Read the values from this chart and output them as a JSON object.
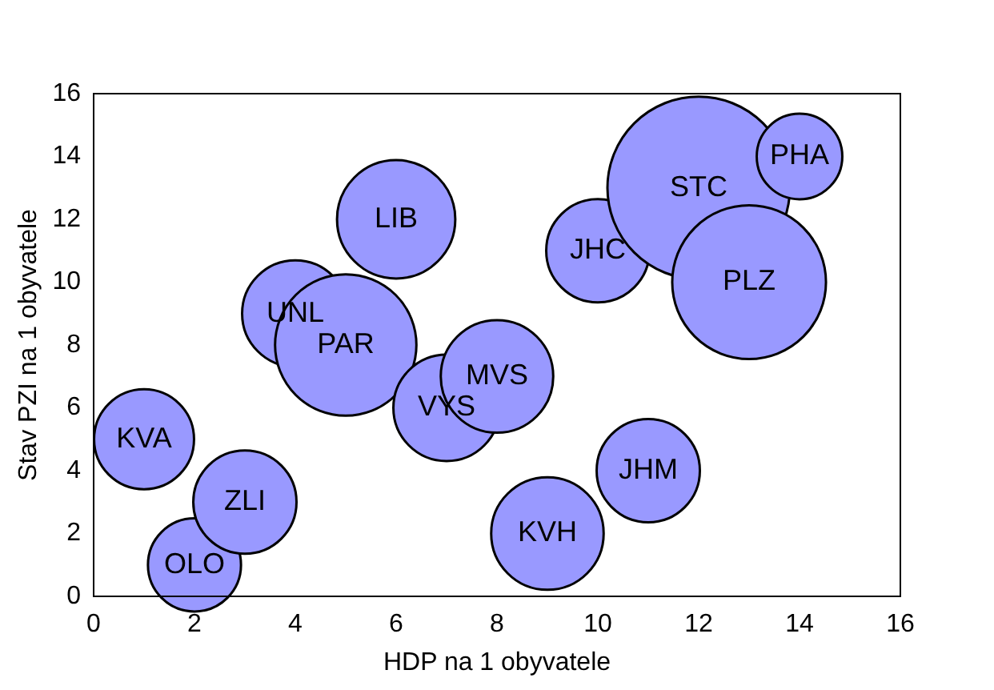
{
  "chart_data": {
    "type": "bubble",
    "xlabel": "HDP na 1 obyvatele",
    "ylabel": "Stav PZI na 1 obyvatele",
    "x": [
      1,
      2,
      3,
      4,
      5,
      6,
      7,
      8,
      9,
      10,
      11,
      12,
      13,
      14
    ],
    "values": [
      5,
      1,
      3,
      9,
      8,
      12,
      6,
      7,
      2,
      11,
      4,
      13,
      10,
      14
    ],
    "sizes": [
      0.3,
      0.26,
      0.32,
      0.34,
      0.6,
      0.42,
      0.34,
      0.38,
      0.38,
      0.32,
      0.32,
      1,
      0.71,
      0.22
    ],
    "color": "#9999ff",
    "xlim": [
      0,
      16
    ],
    "xticks": [
      0,
      2,
      4,
      6,
      8,
      10,
      12,
      14,
      16
    ],
    "ylim": [
      0,
      16
    ],
    "yticks": [
      0,
      2,
      4,
      6,
      8,
      10,
      12,
      14,
      16
    ],
    "annotations": [
      {
        "text": "KVA",
        "x": 1,
        "y": 5
      },
      {
        "text": "OLO",
        "x": 2,
        "y": 1
      },
      {
        "text": "ZLI",
        "x": 3,
        "y": 3
      },
      {
        "text": "UNL",
        "x": 4,
        "y": 9
      },
      {
        "text": "PAR",
        "x": 5,
        "y": 8
      },
      {
        "text": "LIB",
        "x": 6,
        "y": 12
      },
      {
        "text": "VYS",
        "x": 7,
        "y": 6
      },
      {
        "text": "MVS",
        "x": 8,
        "y": 7
      },
      {
        "text": "KVH",
        "x": 9,
        "y": 2
      },
      {
        "text": "JHC",
        "x": 10,
        "y": 11
      },
      {
        "text": "JHM",
        "x": 11,
        "y": 4
      },
      {
        "text": "STC",
        "x": 12,
        "y": 13
      },
      {
        "text": "PLZ",
        "x": 13,
        "y": 10
      },
      {
        "text": "PHA",
        "x": 14,
        "y": 14
      }
    ],
    "grid": false,
    "legend": false
  }
}
